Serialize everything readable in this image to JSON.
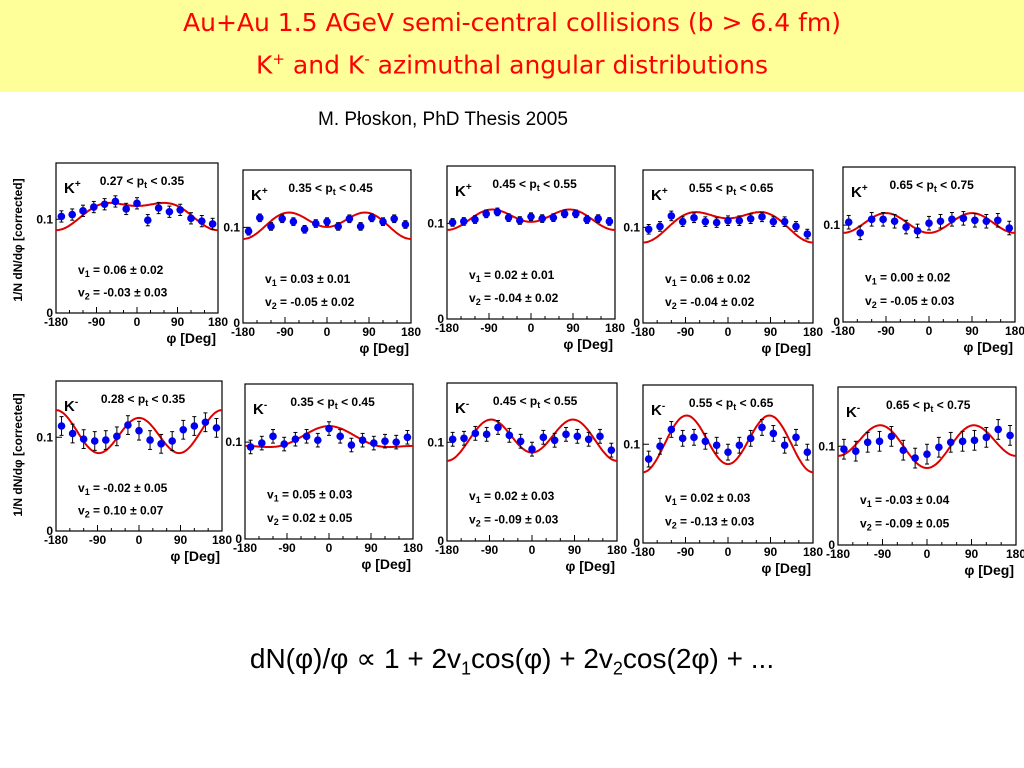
{
  "header": {
    "title_line1": "Au+Au 1.5 AGeV semi-central collisions (b > 6.4 fm)",
    "title_line2_prefix": "K",
    "title_line2_sup1": "+",
    "title_line2_mid": " and K",
    "title_line2_sup2": "-",
    "title_line2_suffix": " azimuthal angular distributions",
    "subtitle": "M. Płoskon, PhD Thesis 2005"
  },
  "formula": {
    "part1": "dN(φ)/φ ∝ 1 + 2v",
    "sub1": "1",
    "part2": "cos(φ) + 2v",
    "sub2": "2",
    "part3": "cos(2φ) + ..."
  },
  "common": {
    "xlabel": "φ [Deg]",
    "ylabel": "1/N dN/dφ [corrected]",
    "xticks": [
      "-180",
      "-90",
      "0",
      "90",
      "180"
    ],
    "yticks": [
      "0",
      "0.1"
    ],
    "colors": {
      "points": "#0000ee",
      "fit": "#dd0000",
      "frame": "#000000"
    }
  },
  "chart_data": [
    {
      "type": "scatter",
      "particle": "K",
      "charge": "+",
      "pt_range": "0.27 < pt < 0.35",
      "v1": "v1 = 0.06 ± 0.02",
      "v2": "v2 = -0.03 ± 0.03",
      "xlim": [
        -180,
        180
      ],
      "ylim": [
        0,
        0.16
      ],
      "x": [
        -168,
        -144,
        -120,
        -96,
        -72,
        -48,
        -24,
        0,
        24,
        48,
        72,
        96,
        120,
        144,
        168
      ],
      "y": [
        0.103,
        0.105,
        0.109,
        0.113,
        0.116,
        0.119,
        0.111,
        0.117,
        0.099,
        0.112,
        0.108,
        0.11,
        0.101,
        0.098,
        0.095
      ],
      "yerr": [
        0.006,
        0.006,
        0.006,
        0.006,
        0.006,
        0.006,
        0.006,
        0.006,
        0.006,
        0.006,
        0.006,
        0.006,
        0.006,
        0.006,
        0.006
      ]
    },
    {
      "type": "scatter",
      "particle": "K",
      "charge": "+",
      "pt_range": "0.35 < pt < 0.45",
      "v1": "v1 = 0.03 ± 0.01",
      "v2": "v2 = -0.05 ± 0.02",
      "xlim": [
        -180,
        180
      ],
      "ylim": [
        0,
        0.16
      ],
      "x": [
        -168,
        -144,
        -120,
        -96,
        -72,
        -48,
        -24,
        0,
        24,
        48,
        72,
        96,
        120,
        144,
        168
      ],
      "y": [
        0.096,
        0.11,
        0.101,
        0.109,
        0.106,
        0.098,
        0.104,
        0.106,
        0.101,
        0.109,
        0.101,
        0.11,
        0.106,
        0.109,
        0.103
      ],
      "yerr": [
        0.004,
        0.004,
        0.004,
        0.004,
        0.004,
        0.004,
        0.004,
        0.004,
        0.004,
        0.004,
        0.004,
        0.004,
        0.004,
        0.004,
        0.004
      ]
    },
    {
      "type": "scatter",
      "particle": "K",
      "charge": "+",
      "pt_range": "0.45 < pt < 0.55",
      "v1": "v1 = 0.02 ± 0.01",
      "v2": "v2 = -0.04 ± 0.02",
      "xlim": [
        -180,
        180
      ],
      "ylim": [
        0,
        0.16
      ],
      "x": [
        -168,
        -144,
        -120,
        -96,
        -72,
        -48,
        -24,
        0,
        24,
        48,
        72,
        96,
        120,
        144,
        168
      ],
      "y": [
        0.101,
        0.102,
        0.104,
        0.11,
        0.112,
        0.106,
        0.103,
        0.107,
        0.105,
        0.106,
        0.11,
        0.11,
        0.104,
        0.105,
        0.102
      ],
      "yerr": [
        0.004,
        0.004,
        0.004,
        0.004,
        0.004,
        0.004,
        0.004,
        0.004,
        0.004,
        0.004,
        0.004,
        0.004,
        0.004,
        0.004,
        0.004
      ]
    },
    {
      "type": "scatter",
      "particle": "K",
      "charge": "+",
      "pt_range": "0.55 < pt < 0.65",
      "v1": "v1 = 0.06 ± 0.02",
      "v2": "v2 = -0.04 ± 0.02",
      "xlim": [
        -180,
        180
      ],
      "ylim": [
        0,
        0.16
      ],
      "x": [
        -168,
        -144,
        -120,
        -96,
        -72,
        -48,
        -24,
        0,
        24,
        48,
        72,
        96,
        120,
        144,
        168
      ],
      "y": [
        0.098,
        0.101,
        0.112,
        0.106,
        0.11,
        0.106,
        0.105,
        0.107,
        0.107,
        0.109,
        0.111,
        0.106,
        0.106,
        0.101,
        0.093
      ],
      "yerr": [
        0.005,
        0.005,
        0.005,
        0.005,
        0.005,
        0.005,
        0.005,
        0.005,
        0.005,
        0.005,
        0.005,
        0.005,
        0.005,
        0.005,
        0.005
      ]
    },
    {
      "type": "scatter",
      "particle": "K",
      "charge": "+",
      "pt_range": "0.65 < pt < 0.75",
      "v1": "v1 = 0.00 ± 0.02",
      "v2": "v2 = -0.05 ± 0.03",
      "xlim": [
        -180,
        180
      ],
      "ylim": [
        0,
        0.16
      ],
      "x": [
        -168,
        -144,
        -120,
        -96,
        -72,
        -48,
        -24,
        0,
        24,
        48,
        72,
        96,
        120,
        144,
        168
      ],
      "y": [
        0.103,
        0.092,
        0.106,
        0.106,
        0.104,
        0.098,
        0.094,
        0.102,
        0.104,
        0.106,
        0.107,
        0.105,
        0.104,
        0.105,
        0.097
      ],
      "yerr": [
        0.007,
        0.007,
        0.007,
        0.007,
        0.007,
        0.007,
        0.007,
        0.007,
        0.007,
        0.007,
        0.007,
        0.007,
        0.007,
        0.007,
        0.007
      ]
    },
    {
      "type": "scatter",
      "particle": "K",
      "charge": "-",
      "pt_range": "0.28 < pt < 0.35",
      "v1": "v1 = -0.02 ± 0.05",
      "v2": "v2 = 0.10 ± 0.07",
      "xlim": [
        -180,
        180
      ],
      "ylim": [
        0,
        0.16
      ],
      "x": [
        -168,
        -144,
        -120,
        -96,
        -72,
        -48,
        -24,
        0,
        24,
        48,
        72,
        96,
        120,
        144,
        168
      ],
      "y": [
        0.112,
        0.104,
        0.098,
        0.096,
        0.097,
        0.101,
        0.113,
        0.107,
        0.097,
        0.093,
        0.096,
        0.108,
        0.112,
        0.116,
        0.11
      ],
      "yerr": [
        0.01,
        0.01,
        0.01,
        0.01,
        0.01,
        0.01,
        0.01,
        0.01,
        0.01,
        0.01,
        0.01,
        0.01,
        0.01,
        0.01,
        0.01
      ]
    },
    {
      "type": "scatter",
      "particle": "K",
      "charge": "-",
      "pt_range": "0.35 < pt < 0.45",
      "v1": "v1 = 0.05 ± 0.03",
      "v2": "v2 = 0.02 ± 0.05",
      "xlim": [
        -180,
        180
      ],
      "ylim": [
        0,
        0.16
      ],
      "x": [
        -168,
        -144,
        -120,
        -96,
        -72,
        -48,
        -24,
        0,
        24,
        48,
        72,
        96,
        120,
        144,
        168
      ],
      "y": [
        0.095,
        0.099,
        0.106,
        0.098,
        0.103,
        0.106,
        0.102,
        0.114,
        0.106,
        0.097,
        0.102,
        0.099,
        0.101,
        0.1,
        0.105
      ],
      "yerr": [
        0.007,
        0.007,
        0.007,
        0.007,
        0.007,
        0.007,
        0.007,
        0.007,
        0.007,
        0.007,
        0.007,
        0.007,
        0.007,
        0.007,
        0.007
      ]
    },
    {
      "type": "scatter",
      "particle": "K",
      "charge": "-",
      "pt_range": "0.45 < pt < 0.55",
      "v1": "v1 = 0.02 ± 0.03",
      "v2": "v2 = -0.09 ± 0.03",
      "xlim": [
        -180,
        180
      ],
      "ylim": [
        0,
        0.16
      ],
      "x": [
        -168,
        -144,
        -120,
        -96,
        -72,
        -48,
        -24,
        0,
        24,
        48,
        72,
        96,
        120,
        144,
        168
      ],
      "y": [
        0.103,
        0.104,
        0.109,
        0.108,
        0.115,
        0.107,
        0.101,
        0.093,
        0.105,
        0.102,
        0.108,
        0.106,
        0.103,
        0.106,
        0.092
      ],
      "yerr": [
        0.007,
        0.007,
        0.007,
        0.007,
        0.007,
        0.007,
        0.007,
        0.007,
        0.007,
        0.007,
        0.007,
        0.007,
        0.007,
        0.007,
        0.007
      ]
    },
    {
      "type": "scatter",
      "particle": "K",
      "charge": "-",
      "pt_range": "0.55 < pt < 0.65",
      "v1": "v1 = 0.02 ± 0.03",
      "v2": "v2 = -0.13 ± 0.03",
      "xlim": [
        -180,
        180
      ],
      "ylim": [
        0,
        0.16
      ],
      "x": [
        -168,
        -144,
        -120,
        -96,
        -72,
        -48,
        -24,
        0,
        24,
        48,
        72,
        96,
        120,
        144,
        168
      ],
      "y": [
        0.085,
        0.098,
        0.115,
        0.106,
        0.107,
        0.103,
        0.099,
        0.092,
        0.099,
        0.106,
        0.117,
        0.111,
        0.099,
        0.107,
        0.092
      ],
      "yerr": [
        0.008,
        0.008,
        0.008,
        0.008,
        0.008,
        0.008,
        0.008,
        0.008,
        0.008,
        0.008,
        0.008,
        0.008,
        0.008,
        0.008,
        0.008
      ]
    },
    {
      "type": "scatter",
      "particle": "K",
      "charge": "-",
      "pt_range": "0.65 < pt < 0.75",
      "v1": "v1 = -0.03 ± 0.04",
      "v2": "v2 = -0.09 ± 0.05",
      "xlim": [
        -180,
        180
      ],
      "ylim": [
        0,
        0.16
      ],
      "x": [
        -168,
        -144,
        -120,
        -96,
        -72,
        -48,
        -24,
        0,
        24,
        48,
        72,
        96,
        120,
        144,
        168
      ],
      "y": [
        0.097,
        0.095,
        0.104,
        0.105,
        0.11,
        0.096,
        0.088,
        0.092,
        0.099,
        0.104,
        0.105,
        0.106,
        0.109,
        0.117,
        0.111
      ],
      "yerr": [
        0.01,
        0.01,
        0.01,
        0.01,
        0.01,
        0.01,
        0.01,
        0.01,
        0.01,
        0.01,
        0.01,
        0.01,
        0.01,
        0.01,
        0.01
      ]
    }
  ]
}
